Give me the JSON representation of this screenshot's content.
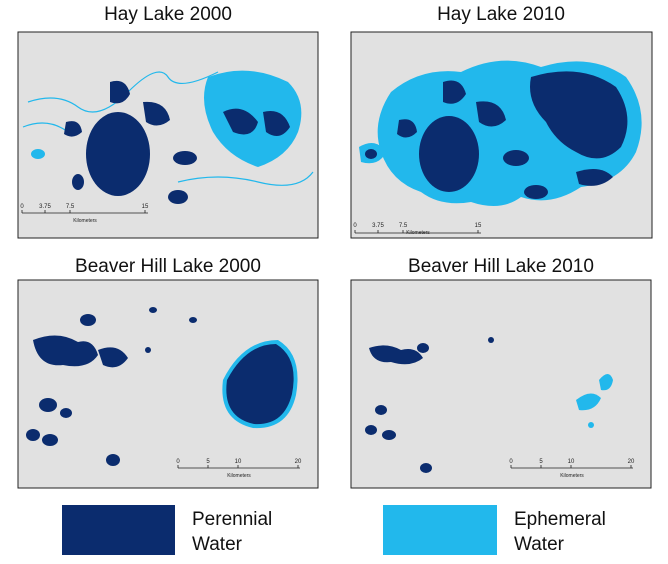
{
  "panels": [
    {
      "title": "Hay Lake 2000",
      "scale_ticks": [
        "0",
        "3.75",
        "7.5",
        "15"
      ],
      "scale_unit": "Kilometers"
    },
    {
      "title": "Hay Lake 2010",
      "scale_ticks": [
        "0",
        "3.75",
        "7.5",
        "15"
      ],
      "scale_unit": "Kilometers"
    },
    {
      "title": "Beaver Hill Lake 2000",
      "scale_ticks": [
        "0",
        "5",
        "10",
        "20"
      ],
      "scale_unit": "Kilometers"
    },
    {
      "title": "Beaver Hill Lake 2010",
      "scale_ticks": [
        "0",
        "5",
        "10",
        "20"
      ],
      "scale_unit": "Kilometers"
    }
  ],
  "legend": [
    {
      "label_lines": [
        "Perennial",
        "Water"
      ]
    },
    {
      "label_lines": [
        "Ephemeral",
        "Water"
      ]
    }
  ]
}
